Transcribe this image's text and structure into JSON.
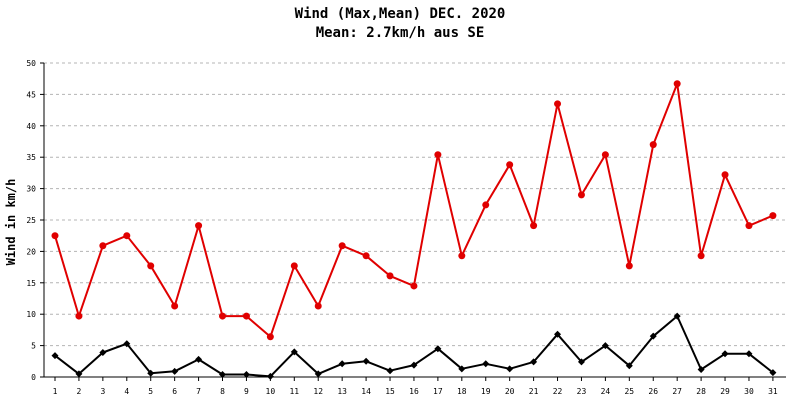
{
  "chart_data": {
    "type": "line",
    "title": "Wind (Max,Mean) DEC. 2020",
    "subtitle": "Mean: 2.7km/h aus SE",
    "xlabel": "",
    "ylabel": "Wind in km/h",
    "ylim": [
      0,
      50
    ],
    "yticks": [
      "0",
      "5",
      "10",
      "15",
      "20",
      "25",
      "30",
      "35",
      "40",
      "45",
      "50"
    ],
    "grid": true,
    "categories": [
      "1",
      "2",
      "3",
      "4",
      "5",
      "6",
      "7",
      "8",
      "9",
      "10",
      "11",
      "12",
      "13",
      "14",
      "15",
      "16",
      "17",
      "18",
      "19",
      "20",
      "21",
      "22",
      "23",
      "24",
      "25",
      "26",
      "27",
      "28",
      "29",
      "30",
      "31"
    ],
    "series": [
      {
        "color": "#e00000",
        "marker": "circle",
        "values": [
          22.5,
          9.7,
          20.9,
          22.5,
          17.7,
          11.3,
          24.1,
          9.7,
          9.7,
          6.4,
          17.7,
          11.3,
          20.9,
          19.3,
          16.1,
          14.5,
          35.4,
          19.3,
          27.4,
          33.8,
          24.1,
          43.5,
          29.0,
          35.4,
          17.7,
          37.0,
          46.7,
          19.3,
          32.2,
          24.1,
          25.7
        ]
      },
      {
        "color": "#000000",
        "marker": "diamond",
        "values": [
          3.4,
          0.5,
          3.9,
          5.3,
          0.6,
          0.9,
          2.8,
          0.4,
          0.4,
          0.1,
          4.0,
          0.5,
          2.1,
          2.5,
          1.0,
          1.9,
          4.5,
          1.3,
          2.1,
          1.3,
          2.4,
          6.8,
          2.4,
          5.0,
          1.8,
          6.5,
          9.7,
          1.2,
          3.7,
          3.7,
          0.7
        ]
      }
    ]
  }
}
